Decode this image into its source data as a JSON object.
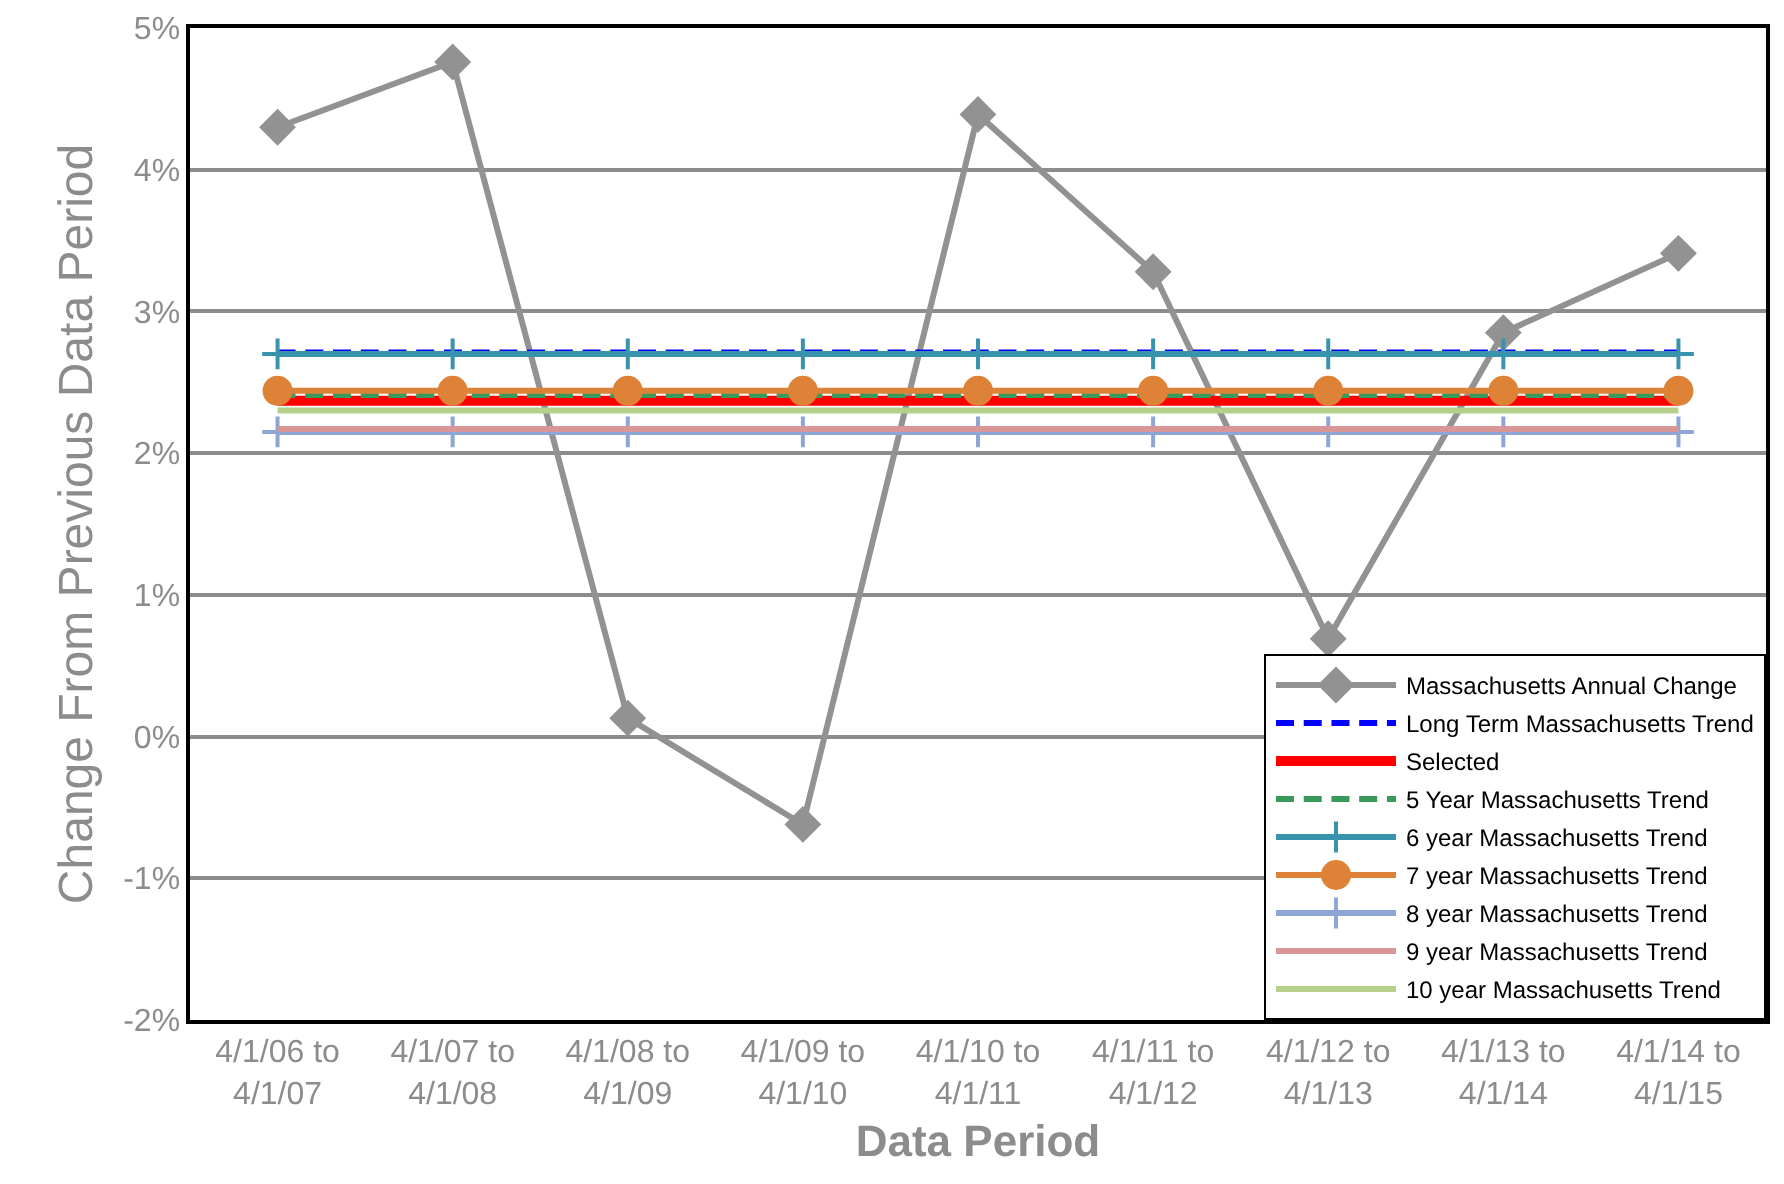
{
  "chart_data": {
    "type": "line",
    "xlabel": "Data Period",
    "ylabel": "Change From Previous Data Period",
    "categories": [
      "4/1/06 to\n4/1/07",
      "4/1/07 to\n4/1/08",
      "4/1/08 to\n4/1/09",
      "4/1/09 to\n4/1/10",
      "4/1/10 to\n4/1/11",
      "4/1/11 to\n4/1/12",
      "4/1/12 to\n4/1/13",
      "4/1/13 to\n4/1/14",
      "4/1/14 to\n4/1/15"
    ],
    "series": [
      {
        "name": "Massachusetts Annual Change",
        "color": "#929292",
        "marker": "diamond",
        "line_style": "solid",
        "values": [
          4.3,
          4.76,
          0.13,
          -0.62,
          4.39,
          3.28,
          0.69,
          2.85,
          3.41
        ]
      },
      {
        "name": "Long Term Massachusetts Trend",
        "color": "#0000ff",
        "marker": "none",
        "line_style": "dashed",
        "values": [
          2.71,
          2.71,
          2.71,
          2.71,
          2.71,
          2.71,
          2.71,
          2.71,
          2.71
        ]
      },
      {
        "name": "Selected",
        "color": "#ff0000",
        "marker": "none",
        "line_style": "solid",
        "values": [
          2.37,
          2.37,
          2.37,
          2.37,
          2.37,
          2.37,
          2.37,
          2.37,
          2.37
        ]
      },
      {
        "name": "5 Year Massachusetts Trend",
        "color": "#3a9a5c",
        "marker": "none",
        "line_style": "dashed",
        "values": [
          2.41,
          2.41,
          2.41,
          2.41,
          2.41,
          2.41,
          2.41,
          2.41,
          2.41
        ]
      },
      {
        "name": "6 year Massachusetts Trend",
        "color": "#3894ad",
        "marker": "cross",
        "line_style": "solid",
        "values": [
          2.7,
          2.7,
          2.7,
          2.7,
          2.7,
          2.7,
          2.7,
          2.7,
          2.7
        ]
      },
      {
        "name": "7 year Massachusetts Trend",
        "color": "#dd8236",
        "marker": "circle",
        "line_style": "solid",
        "values": [
          2.44,
          2.44,
          2.44,
          2.44,
          2.44,
          2.44,
          2.44,
          2.44,
          2.44
        ]
      },
      {
        "name": "8 year Massachusetts Trend",
        "color": "#8ea6d6",
        "marker": "cross",
        "line_style": "solid",
        "values": [
          2.15,
          2.15,
          2.15,
          2.15,
          2.15,
          2.15,
          2.15,
          2.15,
          2.15
        ]
      },
      {
        "name": "9 year Massachusetts Trend",
        "color": "#d99696",
        "marker": "none",
        "line_style": "solid",
        "values": [
          2.17,
          2.17,
          2.17,
          2.17,
          2.17,
          2.17,
          2.17,
          2.17,
          2.17
        ]
      },
      {
        "name": "10 year Massachusetts Trend",
        "color": "#b6d08c",
        "marker": "none",
        "line_style": "solid",
        "values": [
          2.3,
          2.3,
          2.3,
          2.3,
          2.3,
          2.3,
          2.3,
          2.3,
          2.3
        ]
      }
    ],
    "ylim": [
      -2,
      5
    ],
    "yticks": [
      {
        "value": -2,
        "label": "-2%"
      },
      {
        "value": -1,
        "label": "-1%"
      },
      {
        "value": 0,
        "label": "0%"
      },
      {
        "value": 1,
        "label": "1%"
      },
      {
        "value": 2,
        "label": "2%"
      },
      {
        "value": 3,
        "label": "3%"
      },
      {
        "value": 4,
        "label": "4%"
      },
      {
        "value": 5,
        "label": "5%"
      }
    ],
    "grid": "y",
    "legend": "bottom right"
  }
}
